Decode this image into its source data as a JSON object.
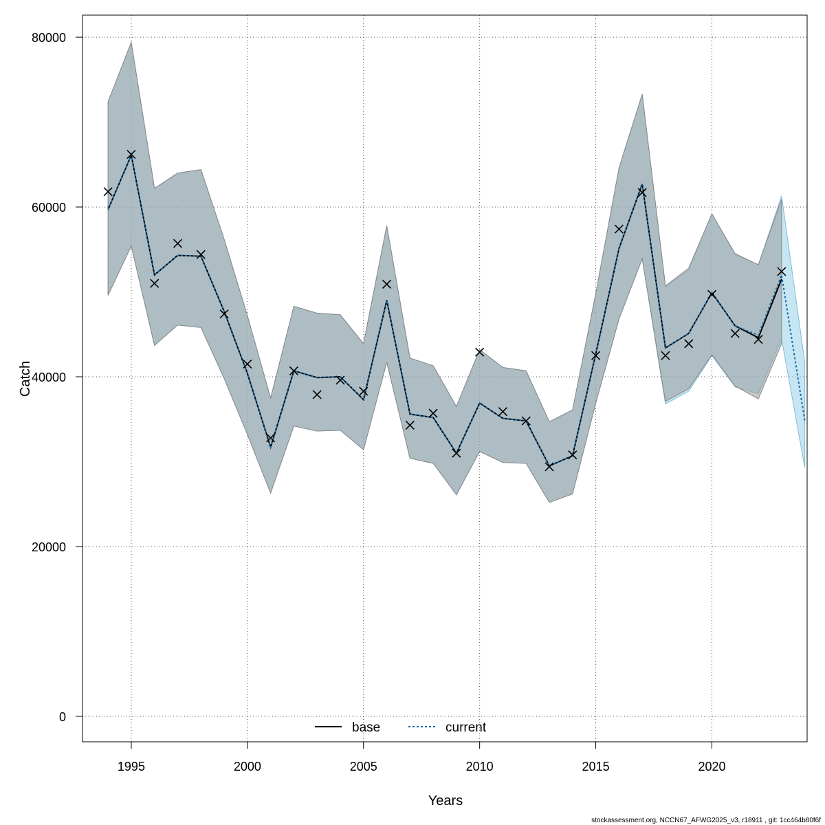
{
  "chart_data": {
    "type": "line",
    "xlabel": "Years",
    "ylabel": "Catch",
    "xlim": [
      1992.9,
      2024.1
    ],
    "ylim": [
      -3000,
      82600
    ],
    "xticks": [
      "1995",
      "2000",
      "2005",
      "2010",
      "2015",
      "2020"
    ],
    "yticks": [
      "0",
      "20000",
      "40000",
      "60000",
      "80000"
    ],
    "grid": true,
    "legend_position": "bottom",
    "observed": {
      "marker": "x",
      "x": [
        1994,
        1995,
        1996,
        1997,
        1998,
        1999,
        2000,
        2001,
        2002,
        2003,
        2004,
        2005,
        2006,
        2007,
        2008,
        2009,
        2010,
        2011,
        2012,
        2013,
        2014,
        2015,
        2016,
        2017,
        2018,
        2019,
        2020,
        2021,
        2022,
        2023
      ],
      "values": [
        61800,
        66200,
        51000,
        55700,
        54400,
        47400,
        41500,
        32800,
        40700,
        37900,
        39600,
        38300,
        50900,
        34300,
        35700,
        31000,
        42900,
        35900,
        34800,
        29400,
        30800,
        42500,
        57400,
        61700,
        42500,
        43900,
        49700,
        45100,
        44400,
        52400
      ]
    },
    "series": [
      {
        "name": "base",
        "color": "#000000",
        "dash": "solid",
        "band_color": "#9a9a9a",
        "x": [
          1994,
          1995,
          1996,
          1997,
          1998,
          1999,
          2000,
          2001,
          2002,
          2003,
          2004,
          2005,
          2006,
          2007,
          2008,
          2009,
          2010,
          2011,
          2012,
          2013,
          2014,
          2015,
          2016,
          2017,
          2018,
          2019,
          2020,
          2021,
          2022,
          2023
        ],
        "values": [
          59700,
          66100,
          52000,
          54300,
          54200,
          47700,
          40400,
          31700,
          40700,
          39900,
          40000,
          37300,
          49000,
          35600,
          35200,
          31000,
          36900,
          35100,
          34800,
          29500,
          30700,
          42700,
          55100,
          62700,
          43400,
          45100,
          49900,
          46000,
          44600,
          51500
        ],
        "lower": [
          49600,
          55400,
          43700,
          46100,
          45800,
          39800,
          33200,
          26300,
          34200,
          33600,
          33700,
          31400,
          41700,
          30400,
          29800,
          26100,
          31200,
          29900,
          29800,
          25200,
          26200,
          36900,
          46800,
          53900,
          37100,
          38600,
          42600,
          38900,
          37400,
          43900
        ],
        "upper": [
          72400,
          79400,
          62200,
          64000,
          64400,
          56200,
          47200,
          37500,
          48300,
          47500,
          47300,
          43900,
          57800,
          42200,
          41300,
          36500,
          43200,
          41100,
          40700,
          34700,
          36100,
          49800,
          64600,
          73300,
          50700,
          52800,
          59200,
          54500,
          53200,
          60900
        ]
      },
      {
        "name": "current",
        "color": "#1b6aa5",
        "dash": "dotted",
        "band_color": "#8ecde8",
        "x": [
          1994,
          1995,
          1996,
          1997,
          1998,
          1999,
          2000,
          2001,
          2002,
          2003,
          2004,
          2005,
          2006,
          2007,
          2008,
          2009,
          2010,
          2011,
          2012,
          2013,
          2014,
          2015,
          2016,
          2017,
          2018,
          2019,
          2020,
          2021,
          2022,
          2023,
          2024
        ],
        "values": [
          59700,
          66100,
          52000,
          54300,
          54200,
          47700,
          40400,
          31700,
          40700,
          39900,
          40000,
          37300,
          49000,
          35600,
          35200,
          31000,
          36900,
          35100,
          34800,
          29500,
          30700,
          42700,
          55100,
          62700,
          43400,
          45100,
          49900,
          46000,
          44900,
          52000,
          34800
        ],
        "lower": [
          49600,
          55400,
          43700,
          46100,
          45800,
          39800,
          33200,
          26300,
          34200,
          33600,
          33700,
          31400,
          41700,
          30400,
          29800,
          26100,
          31200,
          29900,
          29800,
          25200,
          26200,
          36900,
          46800,
          53900,
          36800,
          38300,
          42500,
          38800,
          38000,
          44500,
          29300
        ],
        "upper": [
          72400,
          79400,
          62200,
          64000,
          64400,
          56200,
          47200,
          37500,
          48300,
          47500,
          47300,
          43900,
          57800,
          42200,
          41300,
          36500,
          43200,
          41100,
          40700,
          34700,
          36100,
          49800,
          64600,
          73300,
          50600,
          52600,
          59200,
          54400,
          53200,
          61300,
          41700
        ]
      }
    ]
  },
  "footer_text": "stockassessment.org, NCCN67_AFWG2025_v3, r18911 , git: 1cc464b80f6f"
}
